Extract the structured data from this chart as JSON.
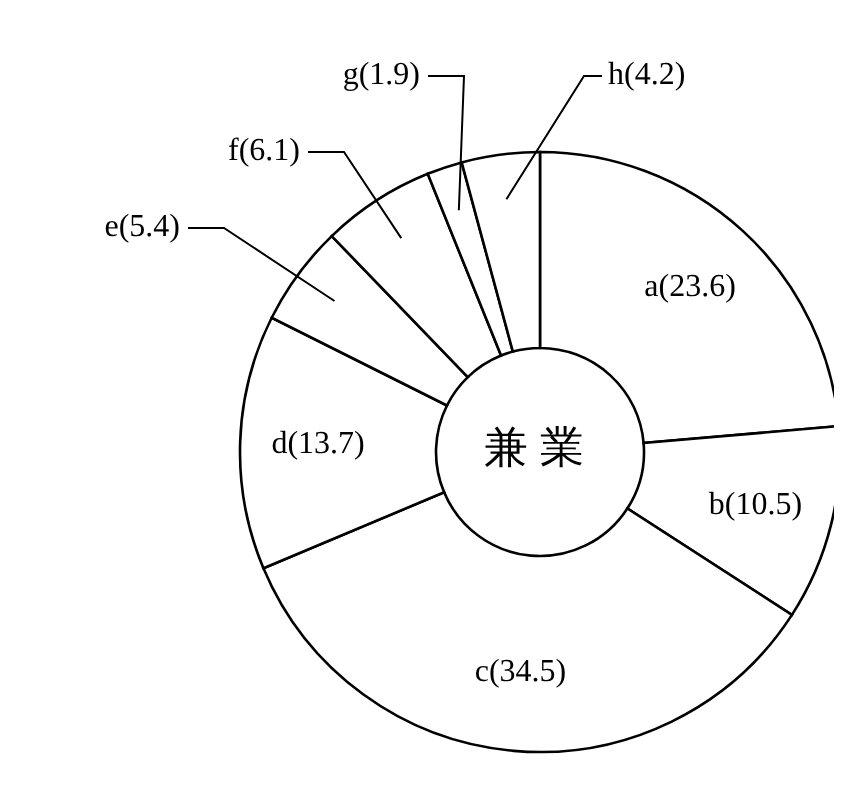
{
  "chart_data": {
    "type": "donut",
    "title": "兼業",
    "categories": [
      "a",
      "b",
      "c",
      "d",
      "e",
      "f",
      "g",
      "h"
    ],
    "values": [
      23.6,
      10.5,
      34.5,
      13.7,
      5.4,
      6.1,
      1.9,
      4.2
    ],
    "colors": [
      "#ffffff",
      "#ffffff",
      "#ffffff",
      "#ffffff",
      "#ffffff",
      "#ffffff",
      "#ffffff",
      "#ffffff"
    ],
    "value_labels": [
      "(23.6)",
      "(10.5)",
      "(34.5)",
      "(13.7)",
      "(5.4)",
      "(6.1)",
      "(1.9)",
      "(4.2)"
    ]
  }
}
